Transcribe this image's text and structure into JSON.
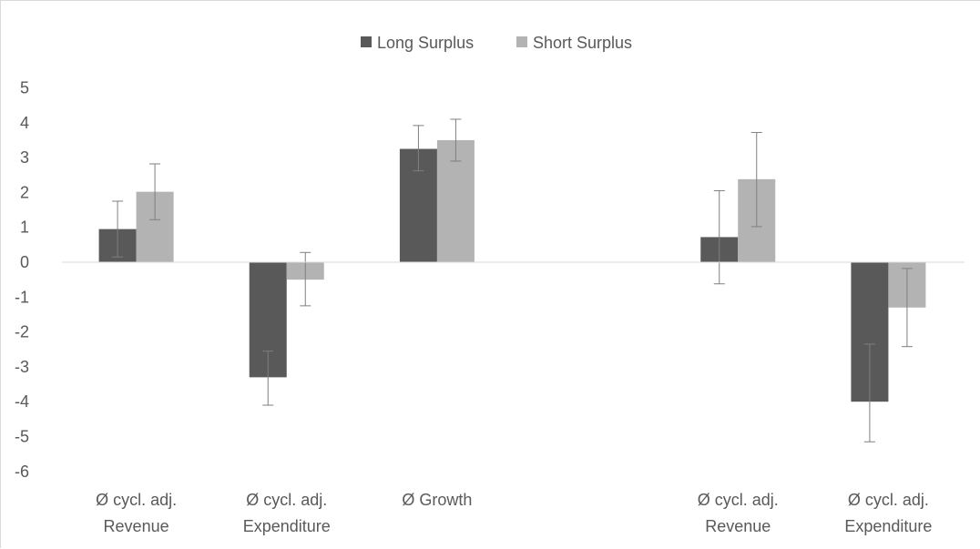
{
  "chart_data": {
    "type": "bar",
    "title": "",
    "xlabel": "",
    "ylabel": "",
    "ylim": [
      -6,
      5
    ],
    "yticks": [
      5,
      4,
      3,
      2,
      1,
      0,
      -1,
      -2,
      -3,
      -4,
      -5,
      -6
    ],
    "grid": false,
    "legend_position": "top",
    "categories": [
      [
        "Ø cycl. adj.",
        "Revenue"
      ],
      [
        "Ø cycl. adj.",
        "Expenditure"
      ],
      [
        "Ø Growth"
      ],
      [
        ""
      ],
      [
        "Ø cycl. adj.",
        "Revenue"
      ],
      [
        "Ø cycl. adj.",
        "Expenditure"
      ]
    ],
    "series": [
      {
        "name": "Long Surplus",
        "color": "#595959",
        "values": [
          0.95,
          -3.3,
          3.25,
          null,
          0.72,
          -4.0
        ],
        "error_low": [
          0.15,
          -4.1,
          2.62,
          null,
          -0.62,
          -5.15
        ],
        "error_high": [
          1.75,
          -2.55,
          3.92,
          null,
          2.05,
          -2.35
        ]
      },
      {
        "name": "Short Surplus",
        "color": "#b3b3b3",
        "values": [
          2.02,
          -0.5,
          3.5,
          null,
          2.38,
          -1.3
        ],
        "error_low": [
          1.22,
          -1.25,
          2.9,
          null,
          1.02,
          -2.42
        ],
        "error_high": [
          2.82,
          0.28,
          4.1,
          null,
          3.72,
          -0.18
        ]
      }
    ],
    "colors": {
      "axis": "#d9d9d9",
      "text": "#595959",
      "error_bar": "#7f7f7f"
    }
  }
}
